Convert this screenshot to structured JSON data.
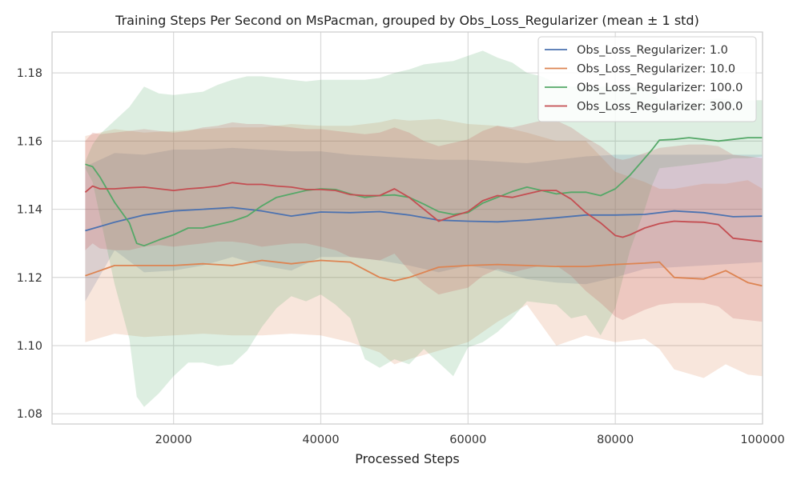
{
  "chart_data": {
    "type": "line",
    "title": "Training Steps Per Second on MsPacman, grouped by Obs_Loss_Regularizer (mean ± 1 std)",
    "xlabel": "Processed Steps",
    "ylabel": "",
    "xlim": [
      3500,
      100000
    ],
    "ylim": [
      1.077,
      1.192
    ],
    "xticks": [
      20000,
      40000,
      60000,
      80000,
      100000
    ],
    "yticks": [
      1.08,
      1.1,
      1.12,
      1.14,
      1.16,
      1.18
    ],
    "grid": true,
    "legend_position": "top-right",
    "series": [
      {
        "name": "Obs_Loss_Regularizer: 1.0",
        "color": "#4c72b0",
        "x": [
          8000,
          12000,
          16000,
          20000,
          24000,
          28000,
          32000,
          36000,
          40000,
          44000,
          48000,
          52000,
          56000,
          60000,
          64000,
          68000,
          72000,
          76000,
          80000,
          84000,
          88000,
          92000,
          96000,
          100000
        ],
        "y": [
          1.1337,
          1.1362,
          1.1383,
          1.1395,
          1.14,
          1.1405,
          1.1395,
          1.138,
          1.1392,
          1.139,
          1.1393,
          1.1383,
          1.1368,
          1.1365,
          1.1363,
          1.1368,
          1.1375,
          1.1383,
          1.1383,
          1.1385,
          1.1395,
          1.139,
          1.1378,
          1.138
        ],
        "lower": [
          1.113,
          1.128,
          1.1215,
          1.122,
          1.1235,
          1.126,
          1.1235,
          1.122,
          1.126,
          1.126,
          1.125,
          1.1235,
          1.1215,
          1.1235,
          1.122,
          1.1195,
          1.1185,
          1.118,
          1.12,
          1.1225,
          1.123,
          1.1235,
          1.124,
          1.1245
        ],
        "upper": [
          1.1525,
          1.1565,
          1.156,
          1.1575,
          1.1575,
          1.158,
          1.1575,
          1.157,
          1.157,
          1.156,
          1.1555,
          1.155,
          1.1545,
          1.1545,
          1.154,
          1.1535,
          1.1545,
          1.1555,
          1.156,
          1.156,
          1.156,
          1.156,
          1.156,
          1.156
        ]
      },
      {
        "name": "Obs_Loss_Regularizer: 10.0",
        "color": "#dd8452",
        "x": [
          8000,
          12000,
          16000,
          20000,
          24000,
          28000,
          32000,
          36000,
          40000,
          44000,
          48000,
          50000,
          52000,
          56000,
          60000,
          64000,
          68000,
          72000,
          76000,
          80000,
          84000,
          86000,
          88000,
          92000,
          95000,
          98000,
          100000
        ],
        "y": [
          1.1205,
          1.1235,
          1.1235,
          1.1235,
          1.124,
          1.1235,
          1.125,
          1.124,
          1.125,
          1.1245,
          1.12,
          1.119,
          1.12,
          1.123,
          1.1235,
          1.1238,
          1.1235,
          1.1232,
          1.1232,
          1.1238,
          1.1242,
          1.1245,
          1.12,
          1.1195,
          1.122,
          1.1185,
          1.1175
        ],
        "lower": [
          1.101,
          1.1035,
          1.1025,
          1.103,
          1.1035,
          1.103,
          1.103,
          1.1035,
          1.103,
          1.101,
          1.098,
          1.0945,
          1.096,
          1.0985,
          1.101,
          1.107,
          1.112,
          1.1,
          1.103,
          1.101,
          1.102,
          1.099,
          1.093,
          1.0905,
          1.0945,
          1.0915,
          1.091
        ],
        "upper": [
          1.1615,
          1.1635,
          1.1625,
          1.163,
          1.1635,
          1.164,
          1.164,
          1.165,
          1.1645,
          1.1645,
          1.1655,
          1.1665,
          1.166,
          1.1665,
          1.165,
          1.1645,
          1.1625,
          1.16,
          1.16,
          1.151,
          1.148,
          1.146,
          1.146,
          1.1475,
          1.1475,
          1.1485,
          1.146
        ]
      },
      {
        "name": "Obs_Loss_Regularizer: 100.0",
        "color": "#55a868",
        "x": [
          8000,
          9000,
          10000,
          12000,
          14000,
          15000,
          16000,
          18000,
          20000,
          22000,
          24000,
          26000,
          28000,
          30000,
          32000,
          34000,
          36000,
          38000,
          40000,
          42000,
          44000,
          46000,
          48000,
          50000,
          52000,
          54000,
          56000,
          58000,
          60000,
          62000,
          64000,
          66000,
          68000,
          70000,
          72000,
          74000,
          76000,
          78000,
          80000,
          82000,
          84000,
          85000,
          86000,
          88000,
          90000,
          92000,
          94000,
          96000,
          98000,
          100000
        ],
        "y": [
          1.1532,
          1.1525,
          1.1495,
          1.142,
          1.136,
          1.13,
          1.1293,
          1.131,
          1.1325,
          1.1345,
          1.1345,
          1.1355,
          1.1365,
          1.138,
          1.141,
          1.1435,
          1.1445,
          1.1455,
          1.146,
          1.1458,
          1.1445,
          1.1435,
          1.144,
          1.1442,
          1.1435,
          1.1415,
          1.1393,
          1.1385,
          1.139,
          1.1418,
          1.1435,
          1.1452,
          1.1465,
          1.1455,
          1.1445,
          1.145,
          1.145,
          1.144,
          1.146,
          1.15,
          1.155,
          1.1575,
          1.1603,
          1.1605,
          1.161,
          1.1605,
          1.16,
          1.1605,
          1.161,
          1.161
        ],
        "lower": [
          1.152,
          1.148,
          1.138,
          1.118,
          1.102,
          1.085,
          1.082,
          1.086,
          1.091,
          1.095,
          1.095,
          1.094,
          1.0945,
          1.0985,
          1.1055,
          1.111,
          1.1145,
          1.113,
          1.115,
          1.112,
          1.108,
          1.096,
          1.0935,
          1.096,
          1.0945,
          1.099,
          1.095,
          1.091,
          1.0995,
          1.101,
          1.104,
          1.108,
          1.113,
          1.1125,
          1.112,
          1.108,
          1.109,
          1.103,
          1.111,
          1.128,
          1.14,
          1.147,
          1.152,
          1.1525,
          1.153,
          1.1535,
          1.154,
          1.155,
          1.155,
          1.1555
        ],
        "upper": [
          1.154,
          1.159,
          1.162,
          1.166,
          1.17,
          1.173,
          1.176,
          1.174,
          1.1735,
          1.174,
          1.1745,
          1.1765,
          1.178,
          1.179,
          1.179,
          1.1785,
          1.178,
          1.1775,
          1.178,
          1.178,
          1.178,
          1.178,
          1.1785,
          1.18,
          1.181,
          1.1825,
          1.183,
          1.1835,
          1.185,
          1.1865,
          1.1845,
          1.183,
          1.18,
          1.179,
          1.177,
          1.176,
          1.176,
          1.176,
          1.176,
          1.176,
          1.175,
          1.174,
          1.172,
          1.172,
          1.1715,
          1.172,
          1.1725,
          1.172,
          1.172,
          1.172
        ]
      },
      {
        "name": "Obs_Loss_Regularizer: 300.0",
        "color": "#c44e52",
        "x": [
          8000,
          9000,
          10000,
          12000,
          14000,
          16000,
          18000,
          20000,
          22000,
          24000,
          26000,
          28000,
          30000,
          32000,
          34000,
          36000,
          38000,
          40000,
          42000,
          44000,
          46000,
          48000,
          50000,
          52000,
          54000,
          56000,
          58000,
          60000,
          62000,
          64000,
          66000,
          68000,
          70000,
          72000,
          74000,
          76000,
          78000,
          80000,
          81000,
          82000,
          84000,
          86000,
          88000,
          90000,
          92000,
          94000,
          96000,
          98000,
          100000
        ],
        "y": [
          1.145,
          1.1468,
          1.146,
          1.146,
          1.1463,
          1.1465,
          1.146,
          1.1455,
          1.146,
          1.1463,
          1.1468,
          1.1478,
          1.1473,
          1.1473,
          1.1468,
          1.1465,
          1.1458,
          1.1458,
          1.1455,
          1.1443,
          1.144,
          1.144,
          1.146,
          1.1435,
          1.14,
          1.1365,
          1.138,
          1.1393,
          1.1425,
          1.144,
          1.1435,
          1.1445,
          1.1455,
          1.1455,
          1.143,
          1.139,
          1.136,
          1.1323,
          1.1318,
          1.1325,
          1.1345,
          1.1358,
          1.1365,
          1.1363,
          1.1362,
          1.1355,
          1.1315,
          1.131,
          1.1305
        ],
        "lower": [
          1.128,
          1.13,
          1.1285,
          1.128,
          1.128,
          1.129,
          1.1295,
          1.129,
          1.1295,
          1.13,
          1.1305,
          1.1305,
          1.13,
          1.129,
          1.1295,
          1.13,
          1.13,
          1.129,
          1.128,
          1.126,
          1.1255,
          1.125,
          1.127,
          1.122,
          1.118,
          1.115,
          1.116,
          1.117,
          1.1205,
          1.1225,
          1.1215,
          1.1225,
          1.1235,
          1.1235,
          1.1205,
          1.116,
          1.1125,
          1.1085,
          1.1075,
          1.1085,
          1.1105,
          1.112,
          1.1125,
          1.1125,
          1.1125,
          1.1115,
          1.108,
          1.1075,
          1.107
        ],
        "upper": [
          1.16,
          1.1625,
          1.162,
          1.1625,
          1.163,
          1.1635,
          1.163,
          1.1625,
          1.163,
          1.164,
          1.1645,
          1.1655,
          1.165,
          1.165,
          1.1645,
          1.164,
          1.1635,
          1.1635,
          1.163,
          1.1625,
          1.162,
          1.1625,
          1.164,
          1.1625,
          1.16,
          1.1585,
          1.1595,
          1.1605,
          1.163,
          1.1645,
          1.164,
          1.165,
          1.166,
          1.166,
          1.164,
          1.161,
          1.1585,
          1.155,
          1.1545,
          1.155,
          1.1565,
          1.158,
          1.1585,
          1.159,
          1.159,
          1.1585,
          1.156,
          1.1555,
          1.155
        ]
      }
    ]
  }
}
